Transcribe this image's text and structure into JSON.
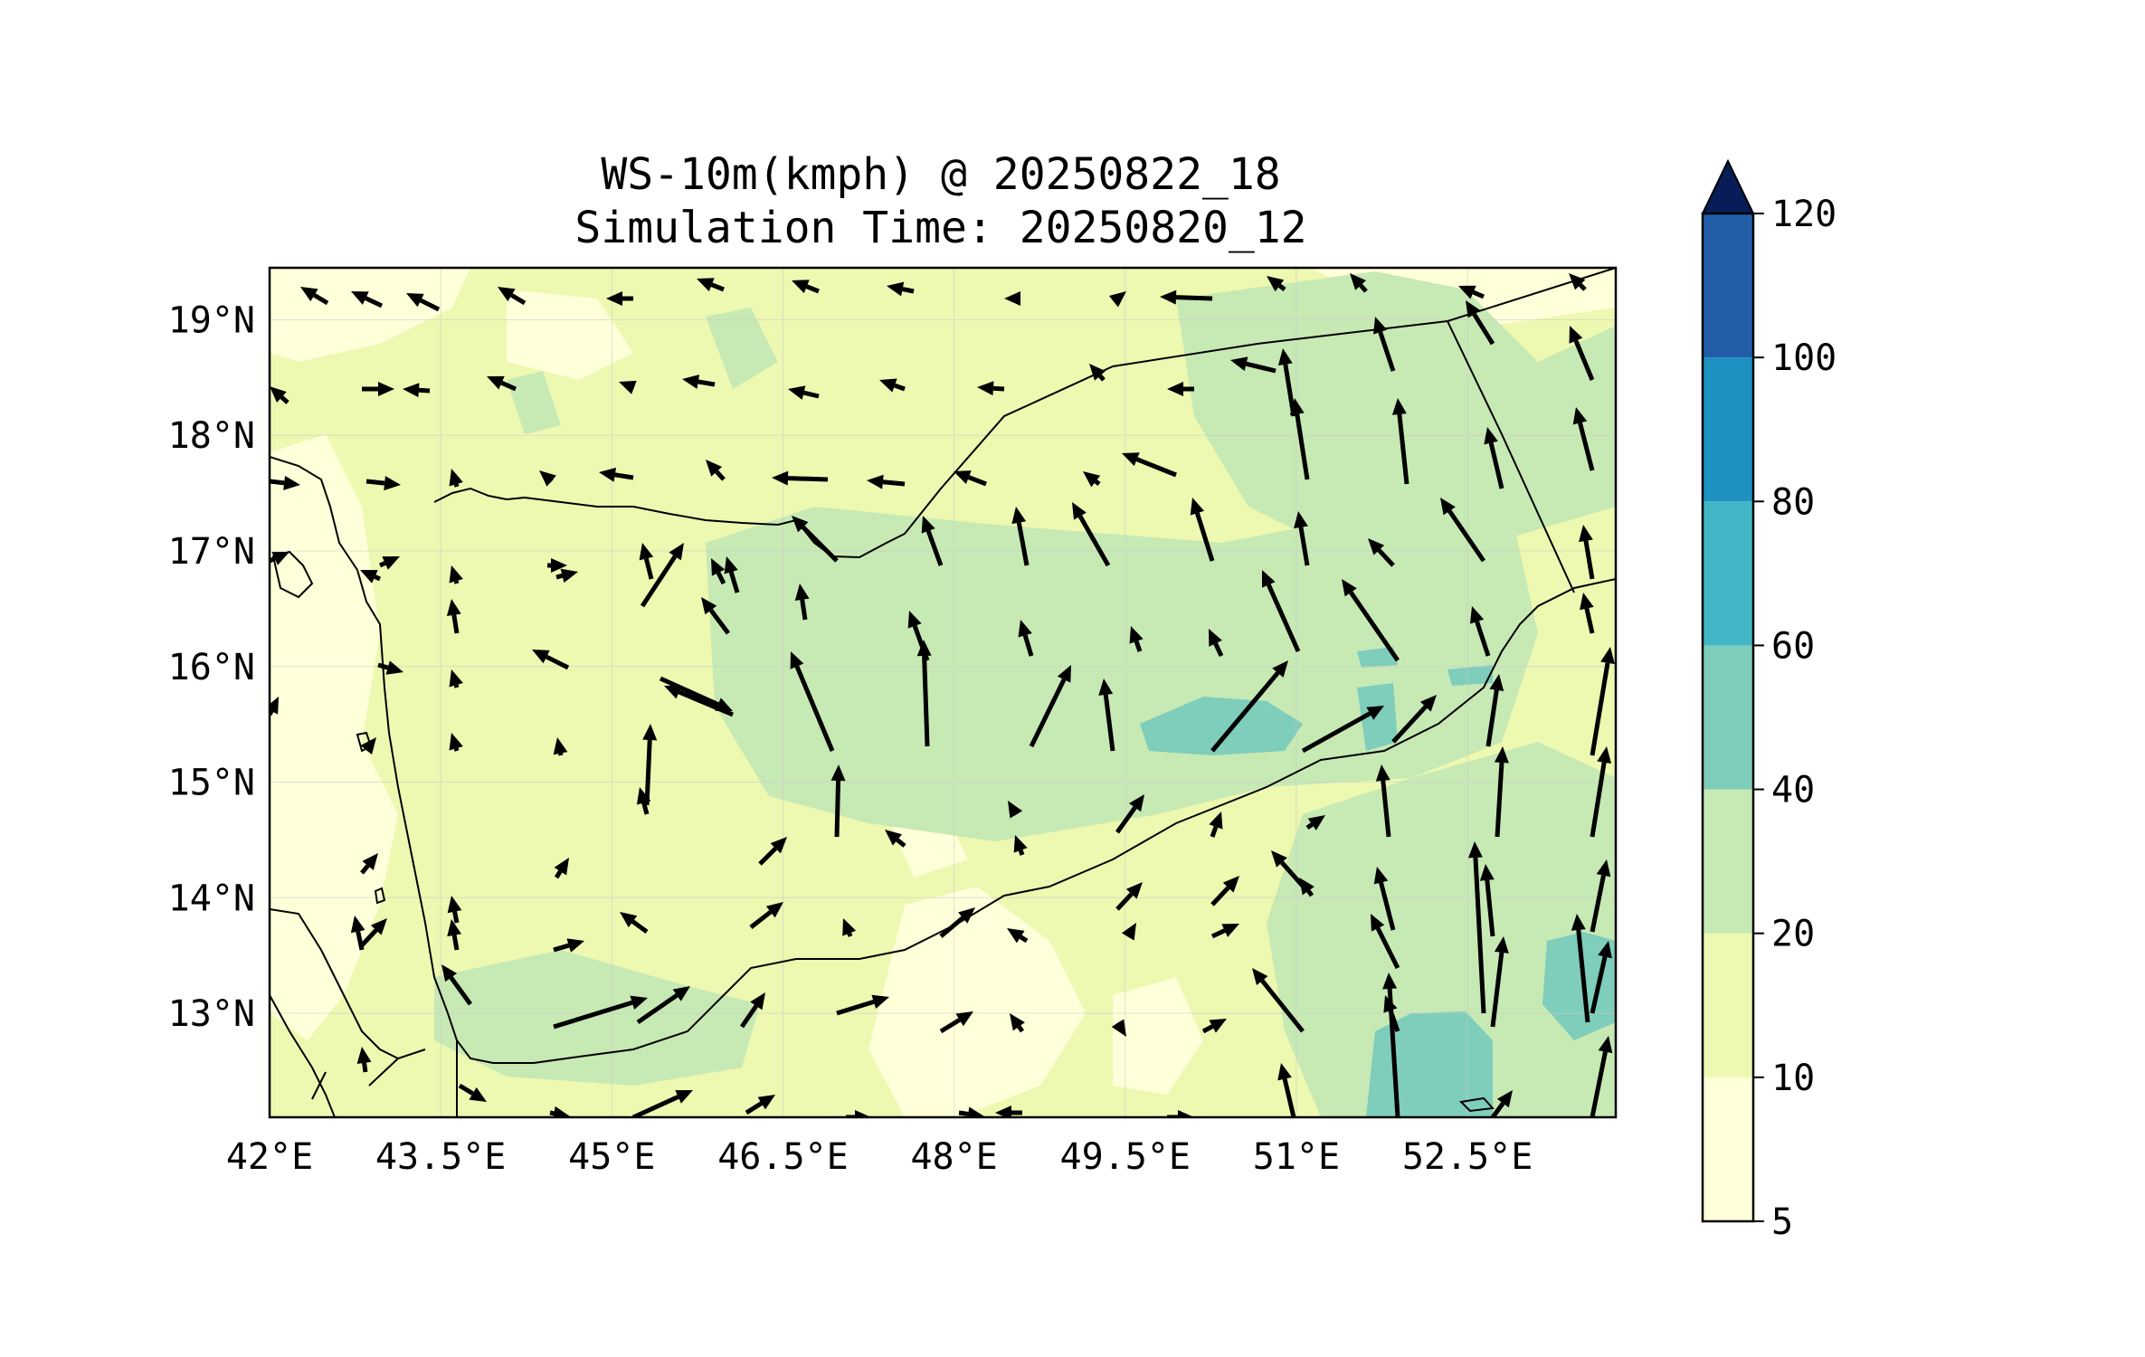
{
  "title": {
    "line1": "WS-10m(kmph) @ 20250822_18",
    "line2": "Simulation Time: 20250820_12"
  },
  "map": {
    "lon_range": [
      42.0,
      53.8
    ],
    "lat_range": [
      12.1,
      19.45
    ],
    "lon_ticks": [
      {
        "value": 42.0,
        "label": "42°E"
      },
      {
        "value": 43.5,
        "label": "43.5°E"
      },
      {
        "value": 45.0,
        "label": "45°E"
      },
      {
        "value": 46.5,
        "label": "46.5°E"
      },
      {
        "value": 48.0,
        "label": "48°E"
      },
      {
        "value": 49.5,
        "label": "49.5°E"
      },
      {
        "value": 51.0,
        "label": "51°E"
      },
      {
        "value": 52.5,
        "label": "52.5°E"
      }
    ],
    "lat_ticks": [
      {
        "value": 13,
        "label": "13°N"
      },
      {
        "value": 14,
        "label": "14°N"
      },
      {
        "value": 15,
        "label": "15°N"
      },
      {
        "value": 16,
        "label": "16°N"
      },
      {
        "value": 17,
        "label": "17°N"
      },
      {
        "value": 18,
        "label": "18°N"
      },
      {
        "value": 19,
        "label": "19°N"
      }
    ],
    "grid": true
  },
  "colorbar": {
    "levels": [
      5,
      10,
      20,
      40,
      60,
      80,
      100,
      120
    ],
    "labels": [
      "5",
      "10",
      "20",
      "40",
      "60",
      "80",
      "100",
      "120"
    ],
    "colors": [
      "#ffffd9",
      "#edf8b1",
      "#c7e9b4",
      "#7fcdbb",
      "#41b6c4",
      "#1d91c0",
      "#225ea8",
      "#253494"
    ],
    "extend_color": "#081d58",
    "extend": "max"
  }
}
